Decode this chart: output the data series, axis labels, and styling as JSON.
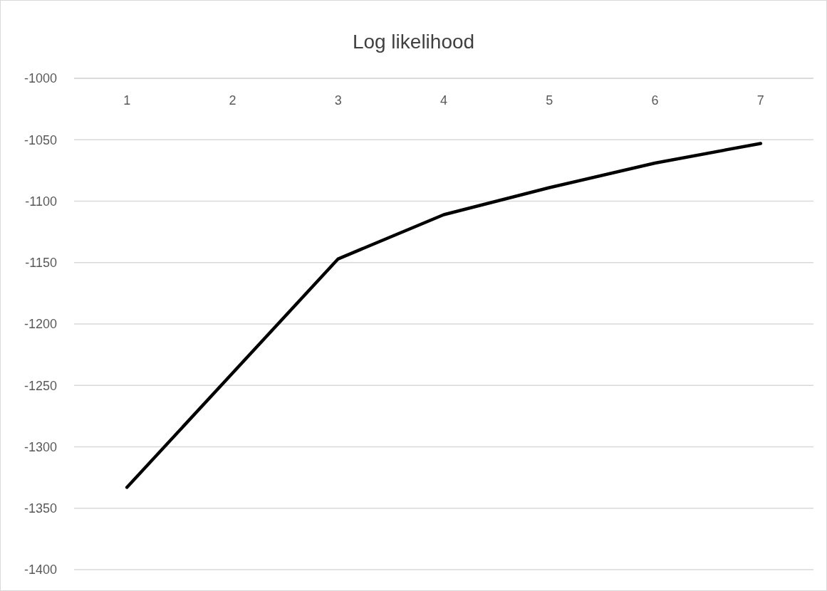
{
  "chart_data": {
    "type": "line",
    "title": "Log likelihood",
    "categories": [
      "1",
      "2",
      "3",
      "4",
      "5",
      "6",
      "7"
    ],
    "series": [
      {
        "color": "#000000",
        "values": [
          -1333,
          -1240,
          -1147,
          -1111,
          -1089,
          -1069,
          -1053
        ]
      }
    ],
    "ylim": [
      -1400,
      -1000
    ],
    "yticks": [
      -1400,
      -1350,
      -1300,
      -1250,
      -1200,
      -1150,
      -1100,
      -1050,
      -1000
    ],
    "grid": "y",
    "marker": "none",
    "line_style": "solid"
  }
}
